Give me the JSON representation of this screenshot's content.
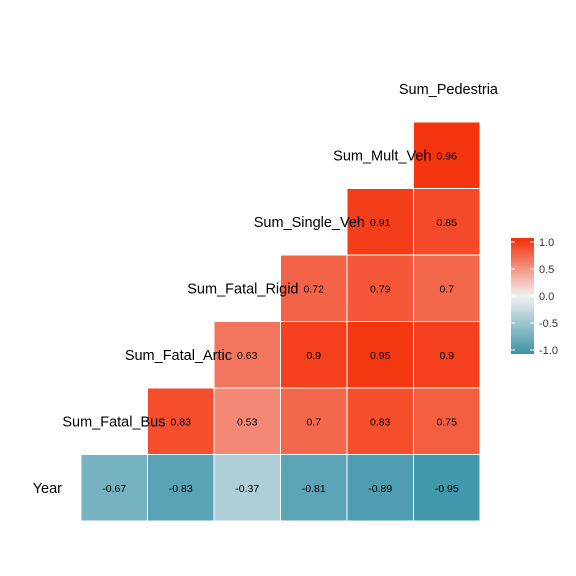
{
  "chart_data": {
    "type": "heatmap",
    "title": "",
    "variables": [
      "Year",
      "Sum_Fatal_Bus",
      "Sum_Fatal_Artic",
      "Sum_Fatal_Rigid",
      "Sum_Single_Veh",
      "Sum_Mult_Veh",
      "Sum_Pedestrian"
    ],
    "row_labels": [
      "Sum_Pedestria",
      "Sum_Mult_Veh",
      "Sum_Single_Veh",
      "Sum_Fatal_Rigid",
      "Sum_Fatal_Artic",
      "Sum_Fatal_Bus",
      "Year"
    ],
    "cells": [
      {
        "row": "Year",
        "col": "Sum_Fatal_Bus",
        "value": -0.67
      },
      {
        "row": "Year",
        "col": "Sum_Fatal_Artic",
        "value": -0.83
      },
      {
        "row": "Year",
        "col": "Sum_Fatal_Rigid",
        "value": -0.37
      },
      {
        "row": "Year",
        "col": "Sum_Single_Veh",
        "value": -0.81
      },
      {
        "row": "Year",
        "col": "Sum_Mult_Veh",
        "value": -0.89
      },
      {
        "row": "Year",
        "col": "Sum_Pedestrian",
        "value": -0.95
      },
      {
        "row": "Sum_Fatal_Bus",
        "col": "Sum_Fatal_Artic",
        "value": 0.83
      },
      {
        "row": "Sum_Fatal_Bus",
        "col": "Sum_Fatal_Rigid",
        "value": 0.53
      },
      {
        "row": "Sum_Fatal_Bus",
        "col": "Sum_Single_Veh",
        "value": 0.7
      },
      {
        "row": "Sum_Fatal_Bus",
        "col": "Sum_Mult_Veh",
        "value": 0.83
      },
      {
        "row": "Sum_Fatal_Bus",
        "col": "Sum_Pedestrian",
        "value": 0.75
      },
      {
        "row": "Sum_Fatal_Artic",
        "col": "Sum_Fatal_Rigid",
        "value": 0.63
      },
      {
        "row": "Sum_Fatal_Artic",
        "col": "Sum_Single_Veh",
        "value": 0.9
      },
      {
        "row": "Sum_Fatal_Artic",
        "col": "Sum_Mult_Veh",
        "value": 0.95
      },
      {
        "row": "Sum_Fatal_Artic",
        "col": "Sum_Pedestrian",
        "value": 0.9
      },
      {
        "row": "Sum_Fatal_Rigid",
        "col": "Sum_Single_Veh",
        "value": 0.72
      },
      {
        "row": "Sum_Fatal_Rigid",
        "col": "Sum_Mult_Veh",
        "value": 0.79
      },
      {
        "row": "Sum_Fatal_Rigid",
        "col": "Sum_Pedestrian",
        "value": 0.7
      },
      {
        "row": "Sum_Single_Veh",
        "col": "Sum_Mult_Veh",
        "value": 0.91
      },
      {
        "row": "Sum_Single_Veh",
        "col": "Sum_Pedestrian",
        "value": 0.85
      },
      {
        "row": "Sum_Mult_Veh",
        "col": "Sum_Pedestrian",
        "value": 0.96
      }
    ],
    "legend": {
      "position": "right",
      "range": [
        -1,
        1
      ],
      "ticks": [
        "1.0",
        "0.5",
        "0.0",
        "-0.5",
        "-1.0"
      ],
      "colors": {
        "low": "#3A93A8",
        "mid": "#F2F2F2",
        "high": "#F42C05"
      }
    },
    "grid": false
  }
}
